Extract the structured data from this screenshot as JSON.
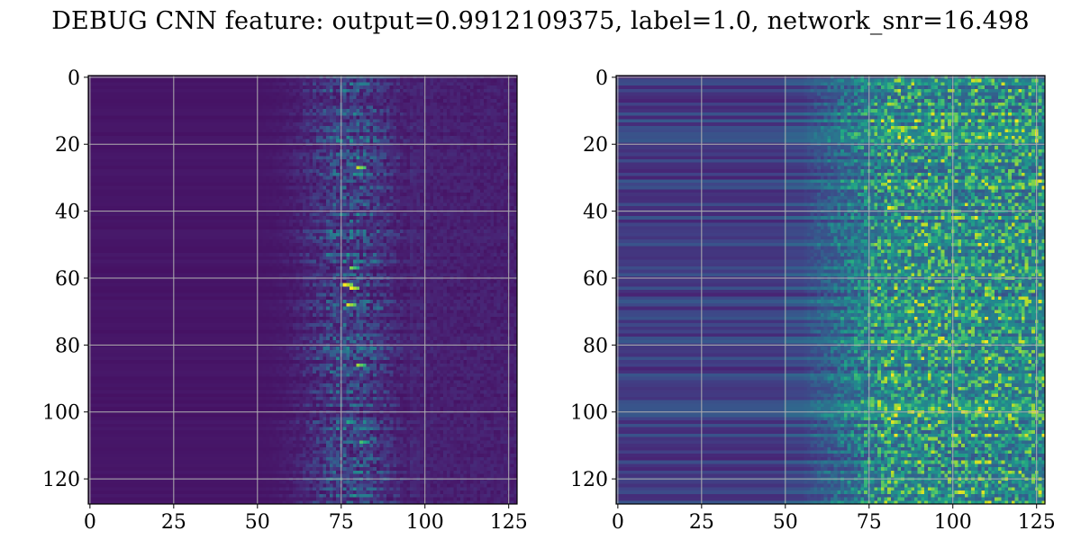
{
  "figure": {
    "title": "DEBUG CNN feature: output=0.9912109375, label=1.0, network_snr=16.498"
  },
  "chart_data": [
    {
      "type": "heatmap",
      "title": "",
      "xlabel": "",
      "ylabel": "",
      "rows": 128,
      "cols": 128,
      "xlim": [
        0,
        127
      ],
      "ylim": [
        127,
        0
      ],
      "y_inverted": true,
      "colormap": "viridis",
      "grid": true,
      "x_ticks": [
        0,
        25,
        50,
        75,
        100,
        125
      ],
      "y_ticks": [
        0,
        20,
        40,
        60,
        80,
        100,
        120
      ],
      "x_tick_labels": [
        "0",
        "25",
        "50",
        "75",
        "100",
        "125"
      ],
      "y_tick_labels": [
        "0",
        "20",
        "40",
        "60",
        "80",
        "100",
        "120"
      ],
      "background_level": 0.05,
      "signal_onset_col": 50,
      "signal_center_col": 78,
      "hot_spots": [
        {
          "row": 27,
          "col": 80,
          "value": 0.9
        },
        {
          "row": 57,
          "col": 78,
          "value": 0.8
        },
        {
          "row": 62,
          "col": 76,
          "value": 1.0
        },
        {
          "row": 63,
          "col": 78,
          "value": 1.0
        },
        {
          "row": 68,
          "col": 77,
          "value": 0.95
        },
        {
          "row": 86,
          "col": 80,
          "value": 0.85
        },
        {
          "row": 103,
          "col": 77,
          "value": 0.6
        },
        {
          "row": 109,
          "col": 81,
          "value": 0.7
        }
      ]
    },
    {
      "type": "heatmap",
      "title": "",
      "xlabel": "",
      "ylabel": "",
      "rows": 128,
      "cols": 128,
      "xlim": [
        0,
        127
      ],
      "ylim": [
        127,
        0
      ],
      "y_inverted": true,
      "colormap": "viridis",
      "grid": true,
      "x_ticks": [
        0,
        25,
        50,
        75,
        100,
        125
      ],
      "y_ticks": [
        0,
        20,
        40,
        60,
        80,
        100,
        120
      ],
      "x_tick_labels": [
        "0",
        "25",
        "50",
        "75",
        "100",
        "125"
      ],
      "y_tick_labels": [
        "0",
        "20",
        "40",
        "60",
        "80",
        "100",
        "120"
      ],
      "background_level": 0.25,
      "signal_onset_col": 55,
      "signal_center_col": 100,
      "hot_spots": [
        {
          "row": 15,
          "col": 85,
          "value": 0.9
        },
        {
          "row": 39,
          "col": 81,
          "value": 1.0
        },
        {
          "row": 40,
          "col": 100,
          "value": 0.9
        },
        {
          "row": 52,
          "col": 84,
          "value": 0.85
        },
        {
          "row": 65,
          "col": 110,
          "value": 0.9
        },
        {
          "row": 76,
          "col": 83,
          "value": 0.85
        },
        {
          "row": 93,
          "col": 102,
          "value": 0.9
        },
        {
          "row": 103,
          "col": 82,
          "value": 0.95
        },
        {
          "row": 103,
          "col": 96,
          "value": 0.9
        },
        {
          "row": 103,
          "col": 113,
          "value": 0.9
        }
      ]
    }
  ]
}
